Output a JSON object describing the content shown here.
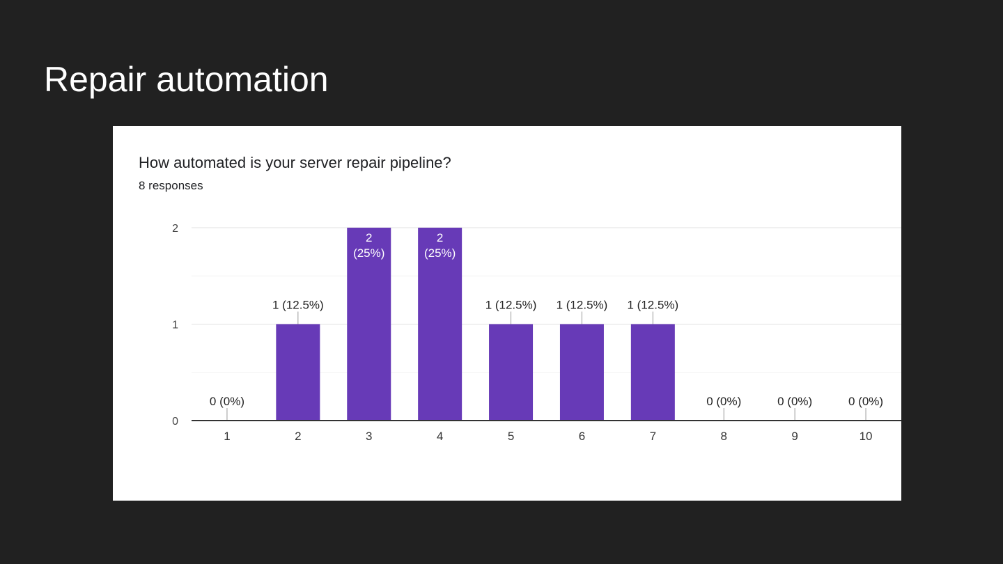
{
  "slide": {
    "title": "Repair automation"
  },
  "card": {
    "question": "How automated is your server repair pipeline?",
    "responses": "8 responses"
  },
  "colors": {
    "background": "#212121",
    "bar": "#673ab7",
    "grid": "#e0e0e0",
    "axis": "#333333"
  },
  "chart_data": {
    "type": "bar",
    "categories": [
      "1",
      "2",
      "3",
      "4",
      "5",
      "6",
      "7",
      "8",
      "9",
      "10"
    ],
    "values": [
      0,
      1,
      2,
      2,
      1,
      1,
      1,
      0,
      0,
      0
    ],
    "data_labels": [
      "0 (0%)",
      "1 (12.5%)",
      "2\n(25%)",
      "2\n(25%)",
      "1 (12.5%)",
      "1 (12.5%)",
      "1 (12.5%)",
      "0 (0%)",
      "0 (0%)",
      "0 (0%)"
    ],
    "yticks": [
      "0",
      "1",
      "2"
    ],
    "ylim": [
      0,
      2
    ],
    "grid": true
  }
}
